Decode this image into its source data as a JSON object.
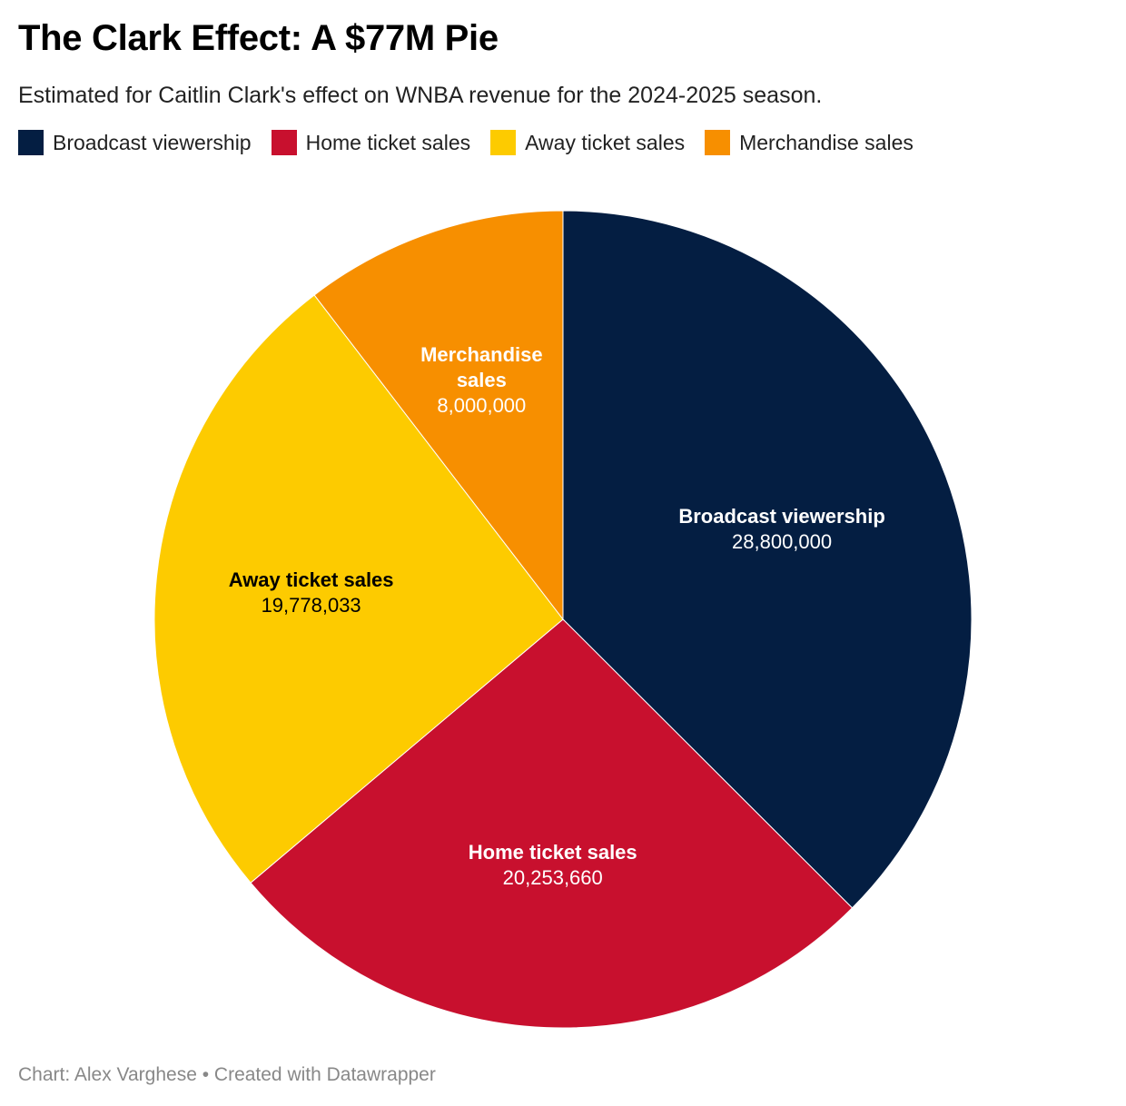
{
  "title": "The Clark Effect: A $77M Pie",
  "subtitle": "Estimated for Caitlin Clark's effect on WNBA revenue for the 2024-2025 season.",
  "footer": {
    "text": "Chart: Alex Varghese • Created with Datawrapper"
  },
  "legend": [
    {
      "label": "Broadcast viewership",
      "color": "#041e42"
    },
    {
      "label": "Home ticket sales",
      "color": "#c8102e"
    },
    {
      "label": "Away ticket sales",
      "color": "#fdcb00"
    },
    {
      "label": "Merchandise sales",
      "color": "#f78f00"
    }
  ],
  "chart_data": {
    "type": "pie",
    "title": "The Clark Effect: A $77M Pie",
    "slices": [
      {
        "name": "Broadcast viewership",
        "value": 28800000,
        "display": "28,800,000",
        "color": "#041e42",
        "label_color": "#ffffff"
      },
      {
        "name": "Home ticket sales",
        "value": 20253660,
        "display": "20,253,660",
        "color": "#c8102e",
        "label_color": "#ffffff"
      },
      {
        "name": "Away ticket sales",
        "value": 19778033,
        "display": "19,778,033",
        "color": "#fdcb00",
        "label_color": "#000000"
      },
      {
        "name": "Merchandise sales",
        "value": 8000000,
        "display": "8,000,000",
        "color": "#f78f00",
        "label_color": "#ffffff"
      }
    ],
    "start": "12 o'clock",
    "direction": "clockwise",
    "legend_position": "top-left"
  }
}
